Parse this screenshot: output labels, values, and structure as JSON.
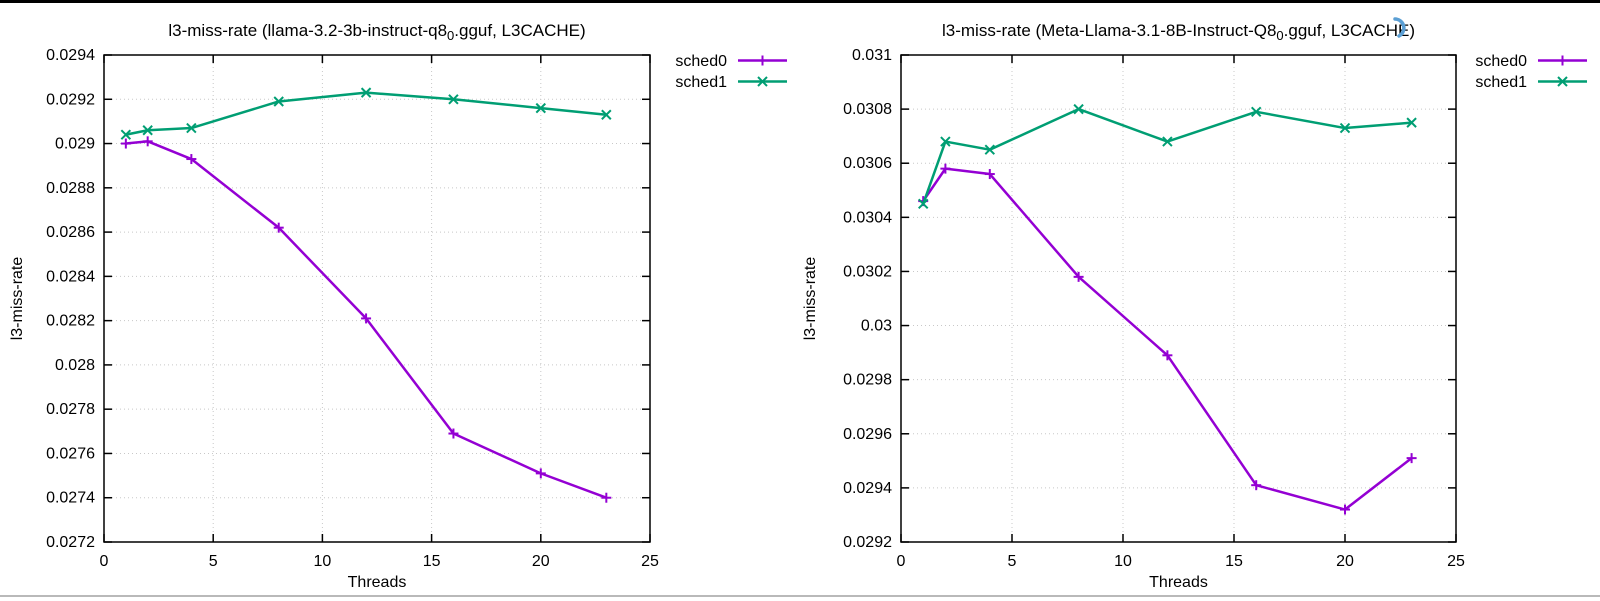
{
  "window": {
    "background": "#ffffff",
    "top_border_color": "#000000",
    "bottom_border_color": "#b9b9b9",
    "blue_artifact_color": "#5b9fd4"
  },
  "chart_data": [
    {
      "type": "line",
      "title_pre": "l3-miss-rate (llama-3.2-3b-instruct-q8",
      "title_sub": "0",
      "title_post": ".gguf, L3CACHE)",
      "xlabel": "Threads",
      "ylabel": "l3-miss-rate",
      "xlim": [
        0,
        25
      ],
      "ylim": [
        0.0272,
        0.0294
      ],
      "xtick_labels": [
        "0",
        "5",
        "10",
        "15",
        "20",
        "25"
      ],
      "ytick_labels": [
        "0.0272",
        "0.0274",
        "0.0276",
        "0.0278",
        "0.028",
        "0.0282",
        "0.0284",
        "0.0286",
        "0.0288",
        "0.029",
        "0.0292",
        "0.0294"
      ],
      "grid": true,
      "legend_position": "outside-top-right",
      "x": [
        1,
        2,
        4,
        8,
        12,
        16,
        20,
        23
      ],
      "series": [
        {
          "name": "sched0",
          "color": "#9400d3",
          "marker": "plus",
          "values": [
            0.029,
            0.02901,
            0.02893,
            0.02862,
            0.02821,
            0.02769,
            0.02751,
            0.0274
          ]
        },
        {
          "name": "sched1",
          "color": "#009e73",
          "marker": "cross",
          "values": [
            0.02904,
            0.02906,
            0.02907,
            0.02919,
            0.02923,
            0.0292,
            0.02916,
            0.02913
          ]
        }
      ]
    },
    {
      "type": "line",
      "title_pre": "l3-miss-rate (Meta-Llama-3.1-8B-Instruct-Q8",
      "title_sub": "0",
      "title_post": ".gguf, L3CACHE)",
      "xlabel": "Threads",
      "ylabel": "l3-miss-rate",
      "xlim": [
        0,
        25
      ],
      "ylim": [
        0.0292,
        0.031
      ],
      "xtick_labels": [
        "0",
        "5",
        "10",
        "15",
        "20",
        "25"
      ],
      "ytick_labels": [
        "0.0292",
        "0.0294",
        "0.0296",
        "0.0298",
        "0.03",
        "0.0302",
        "0.0304",
        "0.0306",
        "0.0308",
        "0.031"
      ],
      "grid": true,
      "legend_position": "outside-top-right",
      "x": [
        1,
        2,
        4,
        8,
        12,
        16,
        20,
        23
      ],
      "series": [
        {
          "name": "sched0",
          "color": "#9400d3",
          "marker": "plus",
          "values": [
            0.03046,
            0.03058,
            0.03056,
            0.03018,
            0.02989,
            0.02941,
            0.02932,
            0.02951
          ]
        },
        {
          "name": "sched1",
          "color": "#009e73",
          "marker": "cross",
          "values": [
            0.03045,
            0.03068,
            0.03065,
            0.0308,
            0.03068,
            0.03079,
            0.03073,
            0.03075
          ]
        }
      ]
    }
  ]
}
